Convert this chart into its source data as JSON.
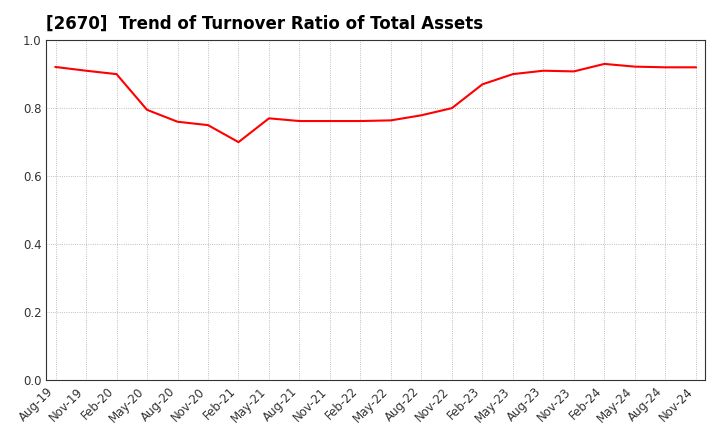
{
  "title": "[2670]  Trend of Turnover Ratio of Total Assets",
  "labels": [
    "Aug-19",
    "Nov-19",
    "Feb-20",
    "May-20",
    "Aug-20",
    "Nov-20",
    "Feb-21",
    "May-21",
    "Aug-21",
    "Nov-21",
    "Feb-22",
    "May-22",
    "Aug-22",
    "Nov-22",
    "Feb-23",
    "May-23",
    "Aug-23",
    "Nov-23",
    "Feb-24",
    "May-24",
    "Aug-24",
    "Nov-24"
  ],
  "values": [
    0.921,
    0.91,
    0.9,
    0.795,
    0.76,
    0.75,
    0.7,
    0.77,
    0.762,
    0.762,
    0.762,
    0.764,
    0.779,
    0.8,
    0.87,
    0.9,
    0.91,
    0.908,
    0.93,
    0.922,
    0.92,
    0.92
  ],
  "line_color": "#ff0000",
  "line_width": 1.5,
  "ylim": [
    0.0,
    1.0
  ],
  "yticks": [
    0.0,
    0.2,
    0.4,
    0.6,
    0.8,
    1.0
  ],
  "background_color": "#ffffff",
  "grid_color": "#888888",
  "title_fontsize": 12,
  "tick_fontsize": 8.5,
  "title_color": "#000000"
}
